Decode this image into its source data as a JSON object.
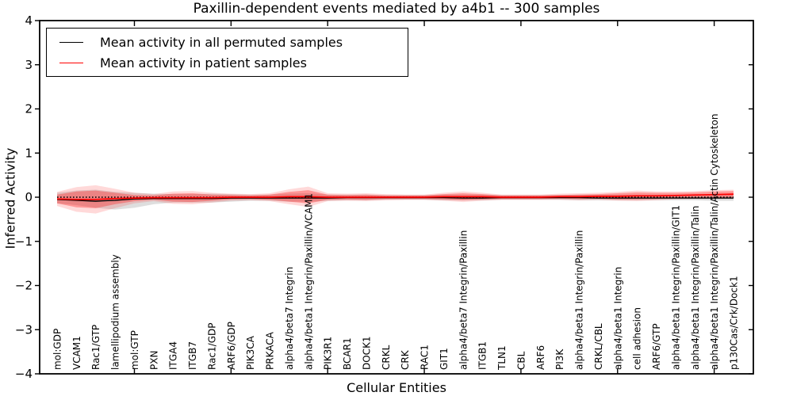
{
  "figure": {
    "title": "Paxillin-dependent events mediated by a4b1 -- 300 samples",
    "xlabel": "Cellular Entities",
    "ylabel": "Inferred Activity"
  },
  "chart_data": {
    "type": "line",
    "title": "Paxillin-dependent events mediated by a4b1 -- 300 samples",
    "xlabel": "Cellular Entities",
    "ylabel": "Inferred Activity",
    "ylim": [
      -4,
      4
    ],
    "yticks": [
      4,
      3,
      2,
      1,
      0,
      -1,
      -2,
      -3,
      -4
    ],
    "grid": false,
    "zero_line_dotted": true,
    "legend_position": "upper left",
    "legend": [
      {
        "label": "Mean activity in all permuted samples",
        "color": "#000000"
      },
      {
        "label": "Mean activity in patient samples",
        "color": "#ff0000"
      }
    ],
    "colors": {
      "permuted_line": "#000000",
      "patient_line": "#ff0000",
      "permuted_band": "#888888",
      "patient_band": "#ff0000"
    },
    "categories": [
      "mol:GDP",
      "VCAM1",
      "Rac1/GTP",
      "lamellipodium assembly",
      "mol:GTP",
      "PXN",
      "ITGA4",
      "ITGB7",
      "Rac1/GDP",
      "ARF6/GDP",
      "PIK3CA",
      "PRKACA",
      "alpha4/beta7 Integrin",
      "alpha4/beta1 Integrin/Paxillin/VCAM1",
      "PIK3R1",
      "BCAR1",
      "DOCK1",
      "CRKL",
      "CRK",
      "RAC1",
      "GIT1",
      "alpha4/beta7 Integrin/Paxillin",
      "ITGB1",
      "TLN1",
      "CBL",
      "ARF6",
      "PI3K",
      "alpha4/beta1 Integrin/Paxillin",
      "CRKL/CBL",
      "alpha4/beta1 Integrin",
      "cell adhesion",
      "ARF6/GTP",
      "alpha4/beta1 Integrin/Paxillin/GIT1",
      "alpha4/beta1 Integrin/Paxillin/Talin",
      "alpha4/beta1 Integrin/Paxillin/Talin/Actin Cytoskeleton",
      "p130Cas/Crk/Dock1"
    ],
    "series": [
      {
        "name": "Mean activity in all permuted samples",
        "color": "#000000",
        "values": [
          -0.05,
          -0.07,
          -0.09,
          -0.07,
          -0.04,
          -0.03,
          -0.03,
          -0.03,
          -0.03,
          -0.02,
          -0.02,
          -0.02,
          -0.02,
          -0.02,
          -0.02,
          -0.01,
          -0.01,
          -0.01,
          -0.01,
          -0.01,
          -0.01,
          -0.02,
          -0.02,
          -0.01,
          -0.01,
          -0.01,
          -0.01,
          -0.01,
          -0.02,
          -0.02,
          -0.02,
          -0.02,
          -0.02,
          -0.02,
          -0.02,
          -0.02
        ]
      },
      {
        "name": "Mean activity in patient samples",
        "color": "#ff0000",
        "values": [
          -0.04,
          -0.05,
          -0.05,
          -0.03,
          -0.02,
          -0.01,
          -0.01,
          -0.01,
          -0.01,
          0.0,
          0.0,
          0.0,
          0.01,
          0.01,
          0.0,
          0.0,
          0.0,
          0.0,
          0.0,
          0.0,
          0.01,
          0.01,
          0.01,
          0.0,
          0.0,
          0.0,
          0.01,
          0.01,
          0.02,
          0.02,
          0.03,
          0.03,
          0.04,
          0.05,
          0.06,
          0.07
        ]
      }
    ],
    "bands": {
      "permuted_upper": [
        0.1,
        0.15,
        0.17,
        0.12,
        0.1,
        0.08,
        0.07,
        0.07,
        0.08,
        0.07,
        0.06,
        0.06,
        0.08,
        0.09,
        0.06,
        0.06,
        0.06,
        0.05,
        0.05,
        0.05,
        0.06,
        0.06,
        0.06,
        0.05,
        0.05,
        0.05,
        0.05,
        0.06,
        0.06,
        0.06,
        0.06,
        0.06,
        0.06,
        0.06,
        0.07,
        0.07
      ],
      "permuted_lower": [
        -0.14,
        -0.18,
        -0.24,
        -0.28,
        -0.24,
        -0.16,
        -0.12,
        -0.12,
        -0.12,
        -0.1,
        -0.08,
        -0.08,
        -0.1,
        -0.1,
        -0.08,
        -0.07,
        -0.07,
        -0.06,
        -0.06,
        -0.06,
        -0.07,
        -0.07,
        -0.07,
        -0.06,
        -0.06,
        -0.06,
        -0.06,
        -0.07,
        -0.07,
        -0.07,
        -0.07,
        -0.07,
        -0.07,
        -0.07,
        -0.08,
        -0.08
      ],
      "patient_inner_halfwidth": [
        0.1,
        0.18,
        0.2,
        0.13,
        0.07,
        0.05,
        0.09,
        0.1,
        0.07,
        0.05,
        0.04,
        0.06,
        0.11,
        0.15,
        0.06,
        0.05,
        0.06,
        0.04,
        0.04,
        0.04,
        0.06,
        0.08,
        0.06,
        0.04,
        0.04,
        0.04,
        0.04,
        0.05,
        0.05,
        0.07,
        0.08,
        0.07,
        0.06,
        0.06,
        0.07,
        0.07
      ],
      "patient_outer_halfwidth": [
        0.16,
        0.28,
        0.32,
        0.22,
        0.12,
        0.08,
        0.14,
        0.15,
        0.11,
        0.08,
        0.07,
        0.09,
        0.17,
        0.23,
        0.09,
        0.08,
        0.09,
        0.07,
        0.06,
        0.06,
        0.09,
        0.12,
        0.09,
        0.06,
        0.06,
        0.06,
        0.07,
        0.08,
        0.08,
        0.1,
        0.12,
        0.1,
        0.09,
        0.09,
        0.1,
        0.1
      ]
    },
    "x_major_tick_positions": [
      5,
      10,
      15,
      20,
      25,
      30,
      35
    ]
  }
}
